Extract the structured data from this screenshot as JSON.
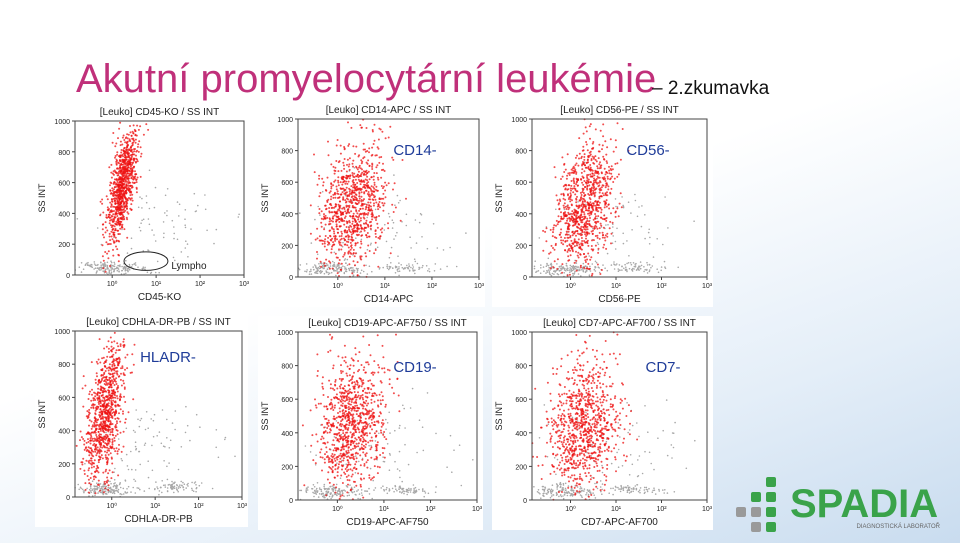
{
  "title": "Akutní promyelocytární leukémie",
  "subtitle": "– 2.zkumavka",
  "axis": {
    "y_label": "SS INT",
    "y_ticks": [
      "1000",
      "800",
      "600",
      "400",
      "200",
      "0"
    ],
    "x_ticks": [
      "10⁰",
      "10¹",
      "10²",
      "10³"
    ]
  },
  "plots": [
    {
      "header": "[Leuko] CD45-KO / SS INT",
      "x_label": "CD45-KO",
      "gate": "Lympho"
    },
    {
      "header": "[Leuko] CD14-APC / SS INT",
      "x_label": "CD14-APC",
      "marker": "CD14-"
    },
    {
      "header": "[Leuko] CD56-PE / SS INT",
      "x_label": "CD56-PE",
      "marker": "CD56-"
    },
    {
      "header": "[Leuko] CDHLA-DR-PB / SS INT",
      "x_label": "CDHLA-DR-PB",
      "marker": "HLADR-"
    },
    {
      "header": "[Leuko] CD19-APC-AF750 / SS INT",
      "x_label": "CD19-APC-AF750",
      "marker": "CD19-"
    },
    {
      "header": "[Leuko] CD7-APC-AF700 / SS INT",
      "x_label": "CD7-APC-AF700",
      "marker": "CD7-"
    }
  ],
  "logo": {
    "name": "SPADIA",
    "tagline": "DIAGNOSTICKÁ LABORATOŘ"
  }
}
